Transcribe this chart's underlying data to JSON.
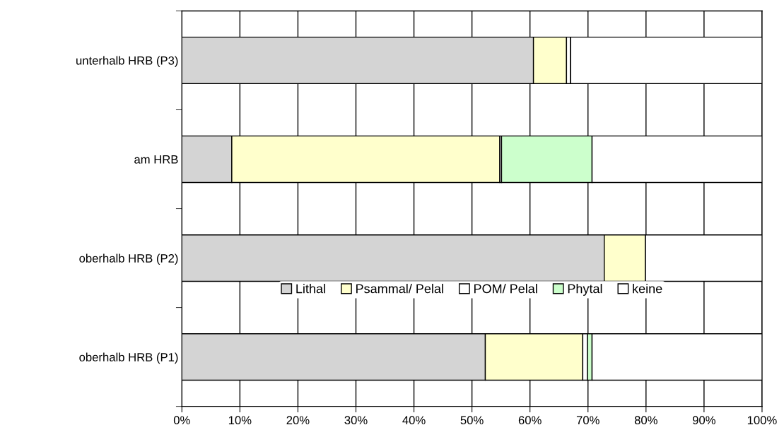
{
  "chart_data": {
    "type": "bar",
    "orientation": "horizontal",
    "stacked": true,
    "categories": [
      "unterhalb HRB (P3)",
      "am HRB",
      "oberhalb HRB (P2)",
      "oberhalb HRB (P1)"
    ],
    "series": [
      {
        "name": "Lithal",
        "color": "#d4d4d4",
        "values": [
          60.6,
          8.6,
          72.8,
          52.3
        ]
      },
      {
        "name": "Psammal/ Pelal",
        "color": "#ffffcc",
        "values": [
          5.7,
          46.2,
          7.1,
          16.8
        ]
      },
      {
        "name": "POM/ Pelal",
        "color": "#ffffff",
        "values": [
          0.7,
          0.3,
          0,
          0.8
        ]
      },
      {
        "name": "Phytal",
        "color": "#ccffcc",
        "values": [
          0,
          15.6,
          0,
          0.8
        ]
      },
      {
        "name": "keine",
        "color": "#ffffff",
        "values": [
          33.0,
          29.3,
          20.1,
          29.3
        ]
      }
    ],
    "xlim": [
      0,
      100
    ],
    "xticks": [
      {
        "value": 0,
        "label": "0%"
      },
      {
        "value": 10,
        "label": "10%"
      },
      {
        "value": 20,
        "label": "20%"
      },
      {
        "value": 30,
        "label": "30%"
      },
      {
        "value": 40,
        "label": "40%"
      },
      {
        "value": 50,
        "label": "50%"
      },
      {
        "value": 60,
        "label": "60%"
      },
      {
        "value": 70,
        "label": "70%"
      },
      {
        "value": 80,
        "label": "80%"
      },
      {
        "value": 90,
        "label": "90%"
      },
      {
        "value": 100,
        "label": "100%"
      }
    ],
    "grid": "x",
    "legend": "center"
  }
}
